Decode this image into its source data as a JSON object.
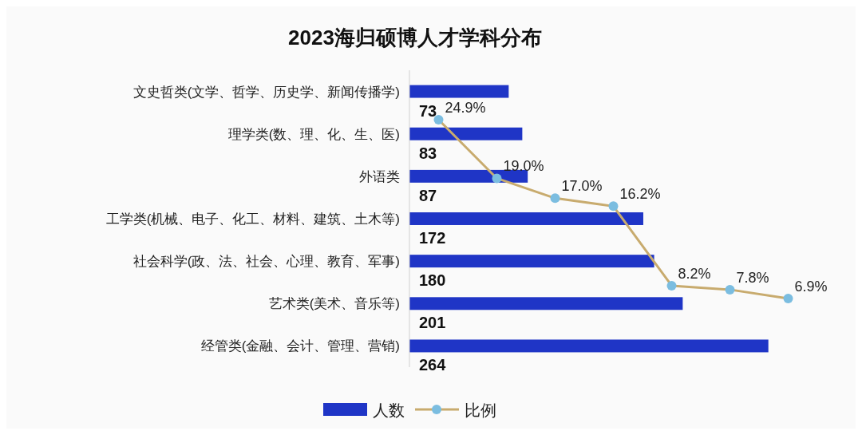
{
  "chart_data": [
    {
      "type": "bar",
      "orientation": "horizontal",
      "title": "2023海归硕博人才学科分布",
      "categories": [
        "文史哲类(文学、哲学、历史学、新闻传播学)",
        "理学类(数、理、化、生、医)",
        "外语类",
        "工学类(机械、电子、化工、材料、建筑、土木等)",
        "社会科学(政、法、社会、心理、教育、军事)",
        "艺术类(美术、音乐等)",
        "经管类(金融、会计、管理、营销)"
      ],
      "series": [
        {
          "name": "人数",
          "color": "#1f35c6",
          "values": [
            73,
            83,
            87,
            172,
            180,
            201,
            264
          ]
        }
      ],
      "tick_labels": "y",
      "data_labels": true,
      "legend": "bottom"
    },
    {
      "type": "line",
      "categories": [
        null,
        null,
        null,
        null,
        null,
        null,
        null
      ],
      "series": [
        {
          "name": "比例",
          "color": "#c8ab6e",
          "values": [
            24.9,
            19.0,
            17.0,
            16.2,
            8.2,
            7.8,
            6.9
          ],
          "value_labels": [
            "24.9%",
            "19.0%",
            "17.0%",
            "16.2%",
            "8.2%",
            "7.8%",
            "6.9%"
          ]
        }
      ],
      "tick_labels": false,
      "marker": "circle",
      "legend": "bottom"
    }
  ]
}
